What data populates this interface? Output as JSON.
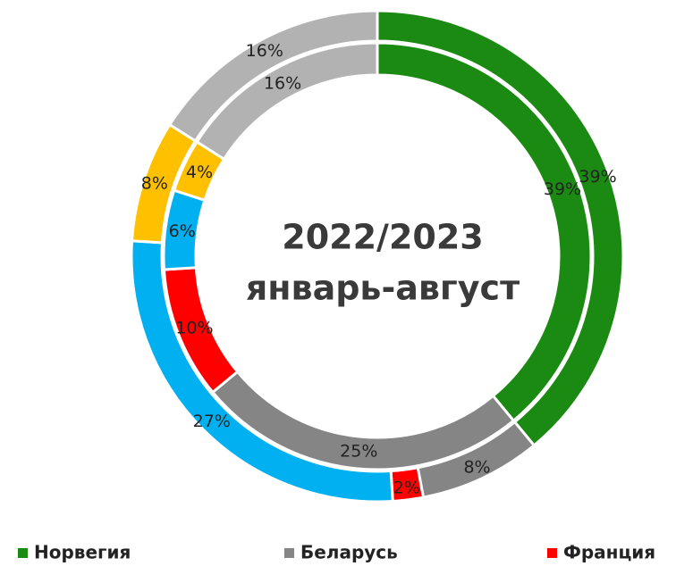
{
  "chart_data": {
    "type": "donut",
    "title": "2022/2023 январь-август",
    "title_lines": [
      "2022/2023",
      "январь-август"
    ],
    "categories": [
      "Норвегия",
      "Беларусь",
      "Франция",
      null,
      null,
      null
    ],
    "colors": [
      "#1b8a12",
      "#858585",
      "#ff0000",
      "#00b0f0",
      "#ffc000",
      "#b2b2b2"
    ],
    "series": [
      {
        "values": [
          39,
          8,
          2,
          27,
          8,
          16
        ],
        "value_labels": [
          "39%",
          "8%",
          "2%",
          "27%",
          "8%",
          "16%"
        ]
      },
      {
        "values": [
          39,
          25,
          10,
          6,
          4,
          16
        ],
        "value_labels": [
          "39%",
          "25%",
          "10%",
          "6%",
          "4%",
          "16%"
        ]
      }
    ]
  }
}
